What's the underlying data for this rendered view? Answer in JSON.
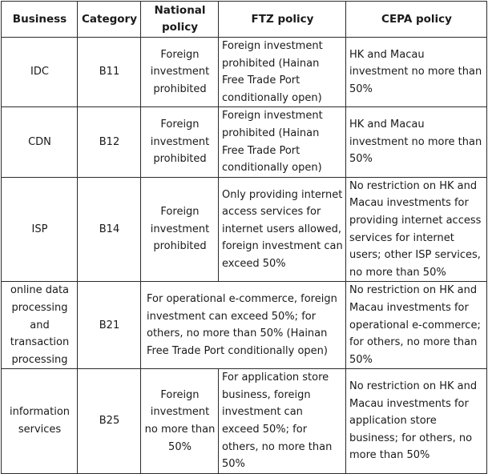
{
  "headers": {
    "business": "Business",
    "category": "Category",
    "national_policy": "National policy",
    "ftz_policy": "FTZ policy",
    "cepa_policy": "CEPA policy"
  },
  "rows": [
    {
      "business": "IDC",
      "category": "B11",
      "national_policy": "Foreign investment prohibited",
      "ftz_policy": "Foreign investment prohibited (Hainan Free Trade Port conditionally open)",
      "cepa_policy": "HK and Macau investment no more than 50%"
    },
    {
      "business": "CDN",
      "category": "B12",
      "national_policy": "Foreign investment prohibited",
      "ftz_policy": "Foreign investment prohibited (Hainan Free Trade Port conditionally open)",
      "cepa_policy": "HK and Macau investment no more than 50%"
    },
    {
      "business": "ISP",
      "category": "B14",
      "national_policy": "Foreign investment prohibited",
      "ftz_policy": "Only providing internet access services for internet users allowed, foreign investment can exceed 50%",
      "cepa_policy": "No restriction on HK and Macau investments for providing internet access services for internet users; other ISP services, no more than 50%"
    },
    {
      "business": "online data processing and transaction processing",
      "category": "B21",
      "national_ftz_policy": "For operational e-commerce, foreign investment can exceed 50%; for others, no more than 50% (Hainan Free Trade Port conditionally open)",
      "cepa_policy": "No restriction on HK and Macau investments for operational e-commerce; for others, no more than 50%"
    },
    {
      "business": "information services",
      "category": "B25",
      "national_policy": "Foreign investment no more than 50%",
      "ftz_policy": "For application store business, foreign investment can exceed 50%; for others, no more than 50%",
      "cepa_policy": "No restriction on HK and Macau investments for application store business; for others, no more than 50%"
    }
  ]
}
